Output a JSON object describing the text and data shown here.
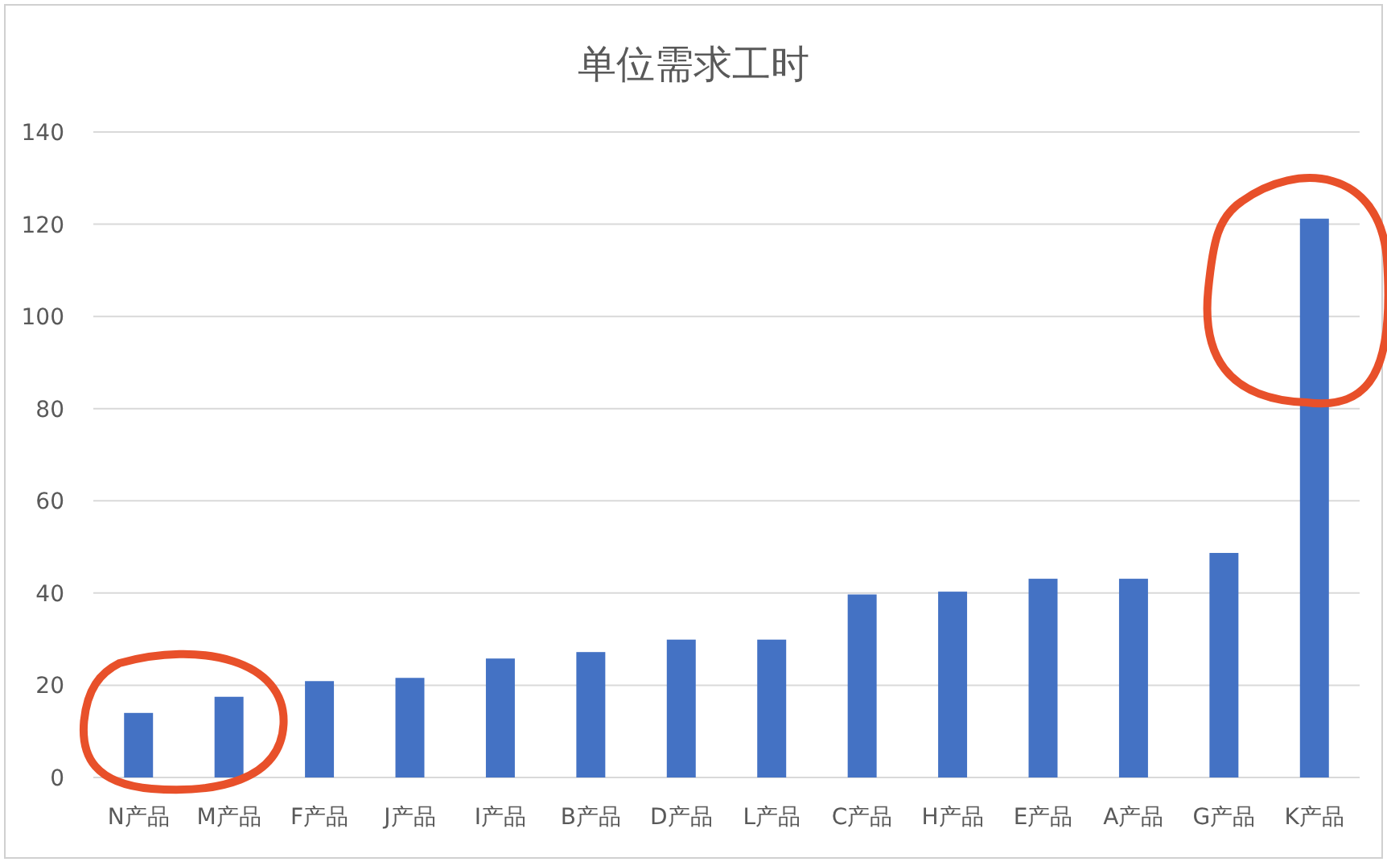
{
  "chart_data": {
    "type": "bar",
    "title": "单位需求工时",
    "categories": [
      "N产品",
      "M产品",
      "F产品",
      "J产品",
      "I产品",
      "B产品",
      "D产品",
      "L产品",
      "C产品",
      "H产品",
      "E产品",
      "A产品",
      "G产品",
      "K产品"
    ],
    "values": [
      14.0,
      17.5,
      20.9,
      21.6,
      25.8,
      27.2,
      29.9,
      29.9,
      39.7,
      40.3,
      43.1,
      43.1,
      48.7,
      121.2
    ],
    "color": "#4472c4",
    "ylim": [
      0,
      140
    ],
    "yticks": [
      0,
      20,
      40,
      60,
      80,
      100,
      120,
      140
    ],
    "grid": "y"
  }
}
